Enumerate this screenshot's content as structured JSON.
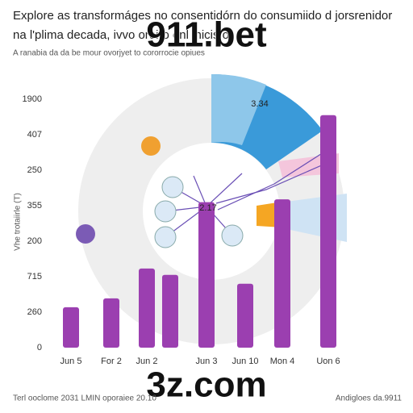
{
  "header": {
    "title_lines": [
      "Explore as transformáges no consentidórn do consumiido d jorsrenidor",
      "na l'plima decada, ivvo oroiro onl inicis o"
    ],
    "subtitle": "A ranabia da da be mour ovorjyet to cororrocie opiues"
  },
  "figure": {
    "y_axis_title": "Vhe trotaiirle (T)",
    "y_labels": [
      "0",
      "260",
      "715",
      "200",
      "355",
      "250",
      "407",
      "1900"
    ],
    "categories": [
      "Jun 5",
      "For 2",
      "Jun 2",
      null,
      "Jun 3",
      "Jun 10",
      "Mon 4",
      "Uon 6"
    ],
    "values": [
      1.14,
      1.39,
      2.23,
      2.05,
      4.1,
      1.8,
      4.18,
      6.55
    ],
    "color": "#9b3fb0",
    "annotations": [
      "3.34",
      "2.17"
    ]
  },
  "watermarks": [
    "911.bet",
    "3z.com"
  ],
  "footer": {
    "left": "Terl ooclome 2031 LMIN oporaiee 20.10",
    "right": "Andigloes da.9911"
  }
}
